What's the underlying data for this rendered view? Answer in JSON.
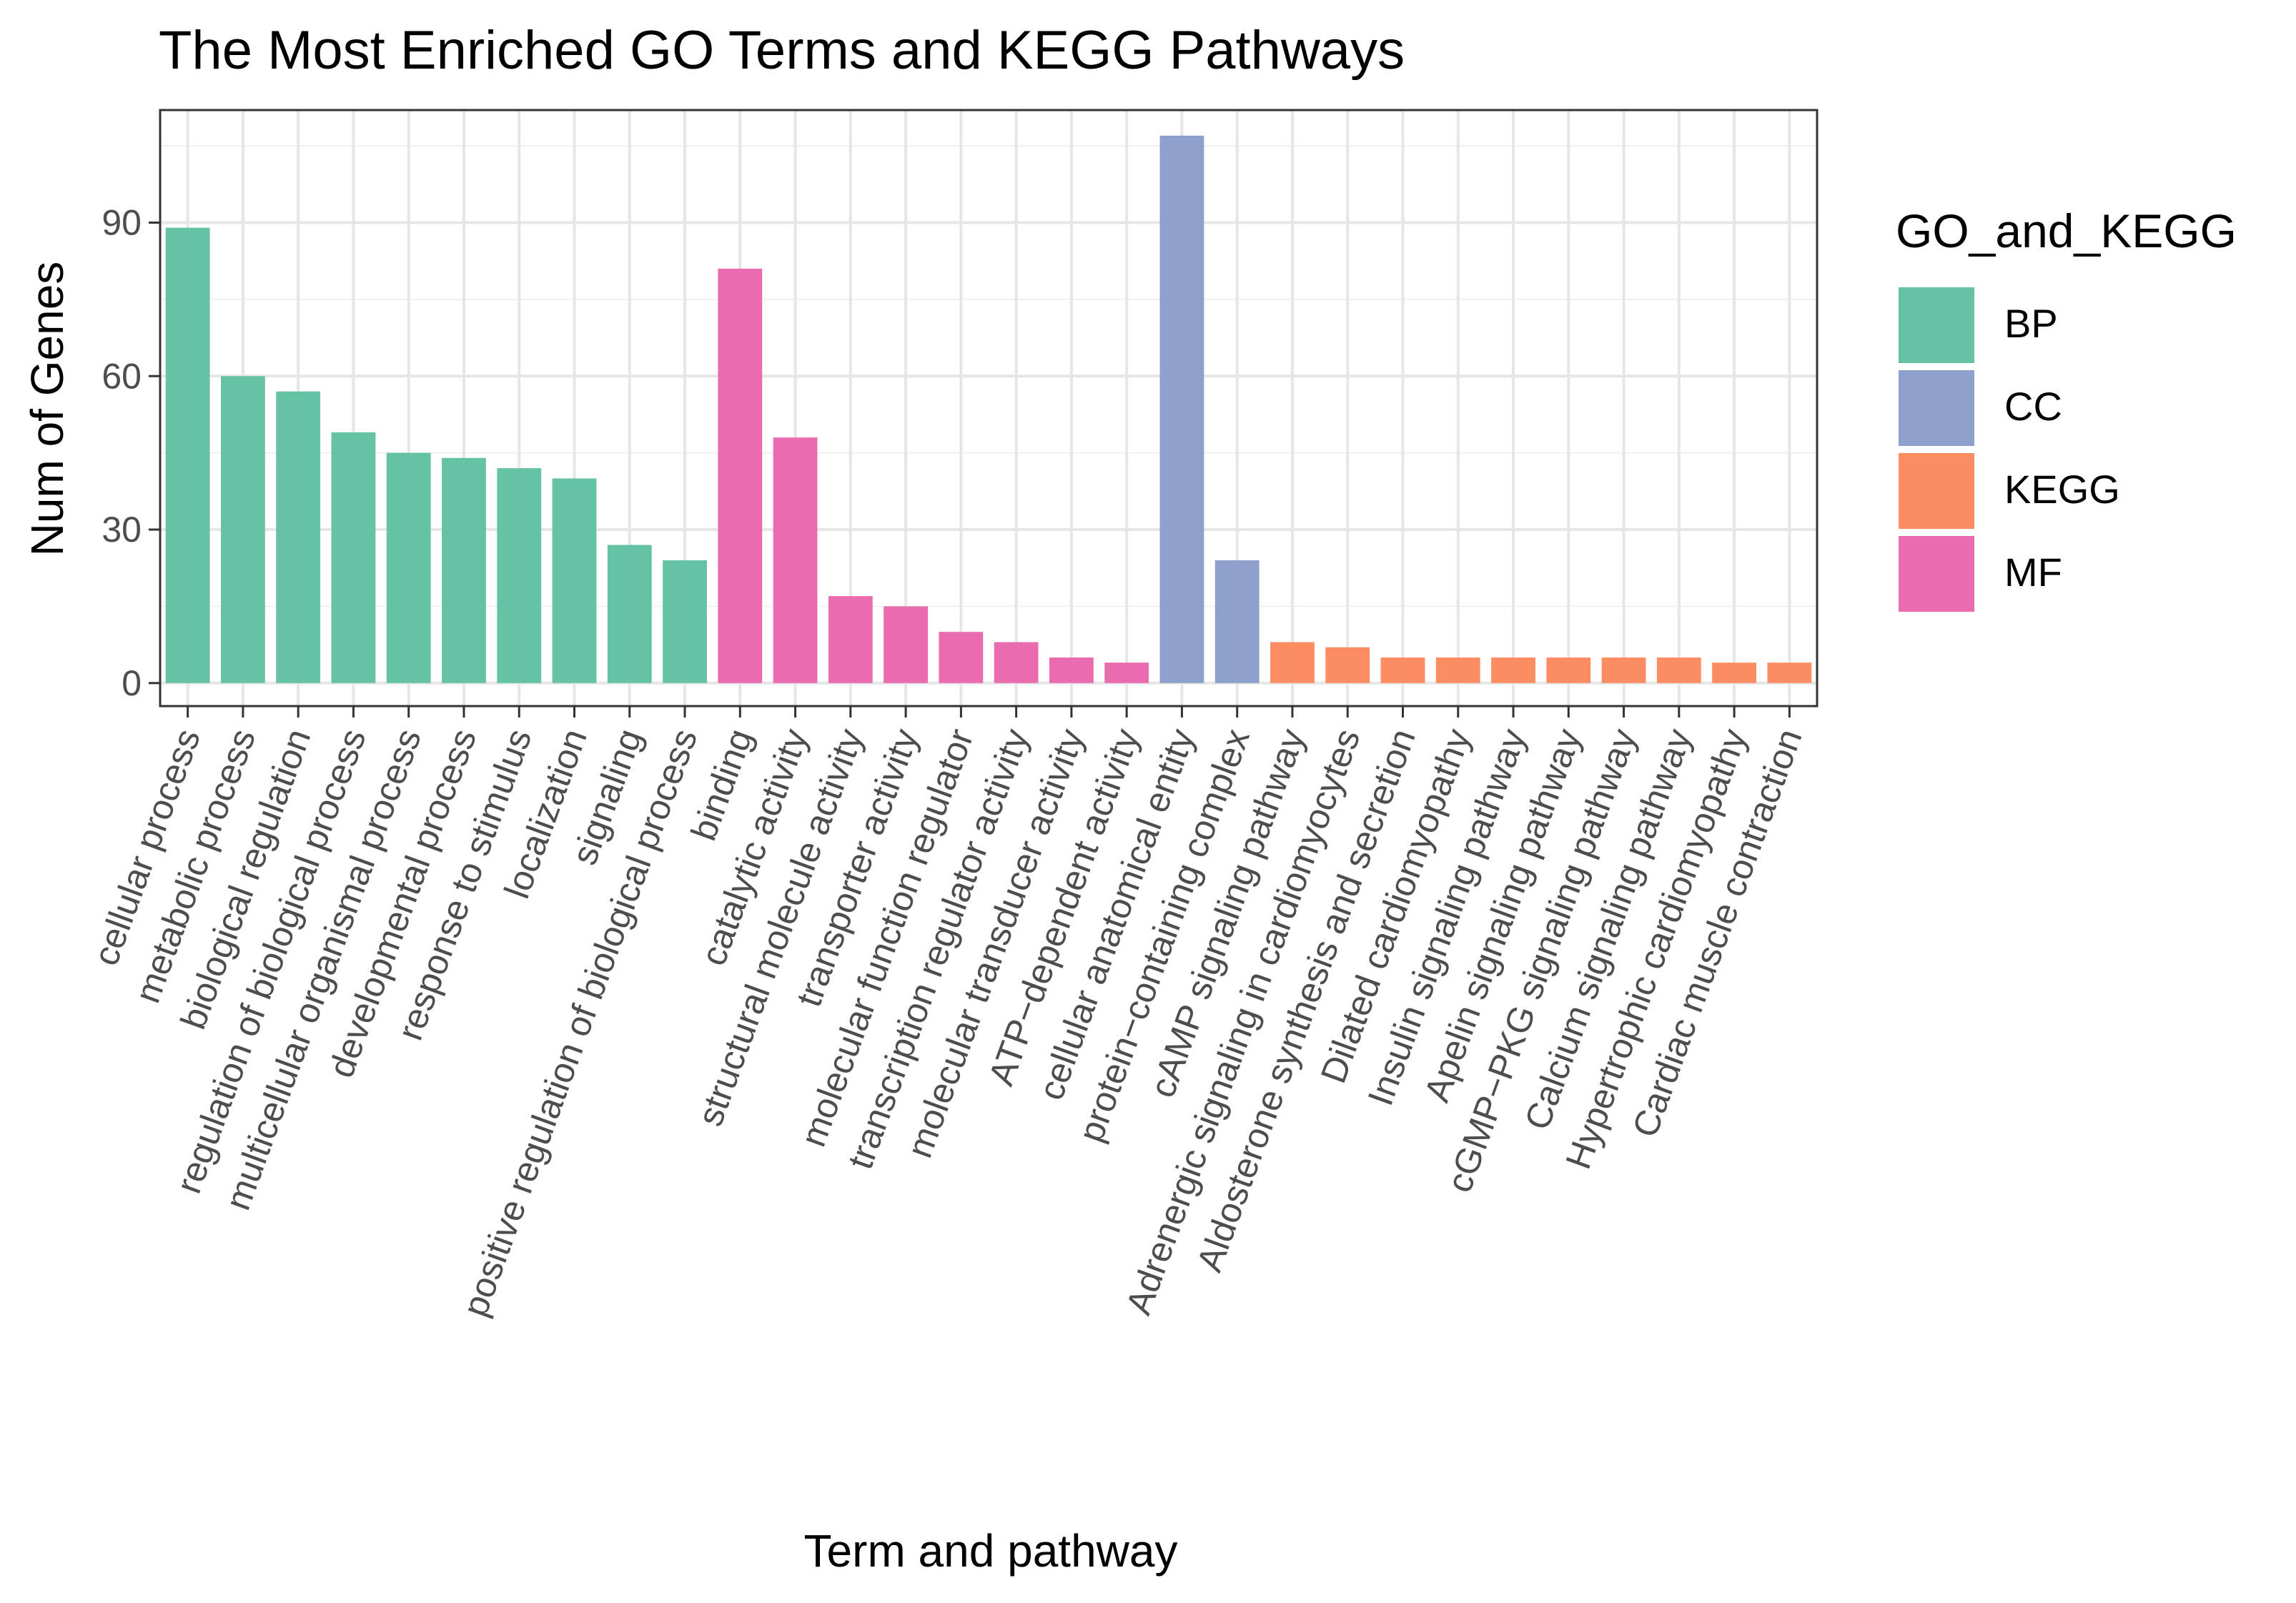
{
  "chart_data": {
    "type": "bar",
    "title": "The Most Enriched GO Terms and KEGG Pathways",
    "xlabel": "Term and pathway",
    "ylabel": "Num of Genes",
    "ylim": [
      -4.5,
      112
    ],
    "yticks": [
      0,
      30,
      60,
      90
    ],
    "grid": true,
    "legend": {
      "title": "GO_and_KEGG",
      "position": "right",
      "entries": [
        {
          "name": "BP",
          "color": "#66C2A5"
        },
        {
          "name": "CC",
          "color": "#8DA0CB"
        },
        {
          "name": "KEGG",
          "color": "#FC8D62"
        },
        {
          "name": "MF",
          "color": "#E96DAE"
        }
      ]
    },
    "categories": [
      "cellular process",
      "metabolic process",
      "biological regulation",
      "regulation of biological process",
      "multicellular organismal process",
      "developmental process",
      "response to stimulus",
      "localization",
      "signaling",
      "positive regulation of biological process",
      "binding",
      "catalytic activity",
      "structural molecule activity",
      "transporter activity",
      "molecular function regulator",
      "transcription regulator activity",
      "molecular transducer activity",
      "ATP−dependent activity",
      "cellular anatomical entity",
      "protein−containing complex",
      "cAMP signaling pathway",
      "Adrenergic signaling in cardiomyocytes",
      "Aldosterone synthesis and secretion",
      "Dilated cardiomyopathy",
      "Insulin signaling pathway",
      "Apelin signaling pathway",
      "cGMP−PKG signaling pathway",
      "Calcium signaling pathway",
      "Hypertrophic cardiomyopathy",
      "Cardiac muscle contraction"
    ],
    "values": [
      89,
      60,
      57,
      49,
      45,
      44,
      42,
      40,
      27,
      24,
      81,
      48,
      17,
      15,
      10,
      8,
      5,
      4,
      107,
      24,
      8,
      7,
      5,
      5,
      5,
      5,
      5,
      5,
      4,
      4
    ],
    "groups": [
      "BP",
      "BP",
      "BP",
      "BP",
      "BP",
      "BP",
      "BP",
      "BP",
      "BP",
      "BP",
      "MF",
      "MF",
      "MF",
      "MF",
      "MF",
      "MF",
      "MF",
      "MF",
      "CC",
      "CC",
      "KEGG",
      "KEGG",
      "KEGG",
      "KEGG",
      "KEGG",
      "KEGG",
      "KEGG",
      "KEGG",
      "KEGG",
      "KEGG"
    ]
  }
}
